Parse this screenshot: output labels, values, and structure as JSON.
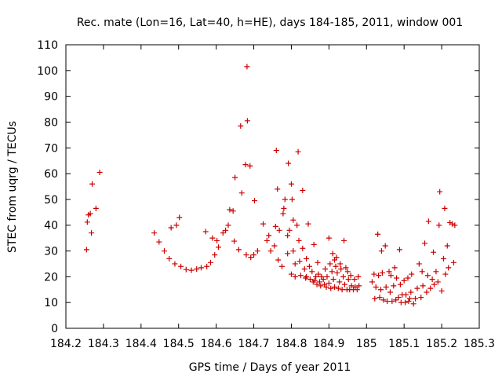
{
  "chart_data": {
    "type": "scatter",
    "title": "Rec. mate (Lon=16, Lat=40, h=HE), days 184-185, 2011, window 001",
    "xlabel": "GPS time / Days of year 2011",
    "ylabel": "STEC from uqrg / TECUs",
    "xlim": [
      184.2,
      185.3
    ],
    "ylim": [
      0,
      110
    ],
    "x_ticks": [
      184.2,
      184.3,
      184.4,
      184.5,
      184.6,
      184.7,
      184.8,
      184.9,
      185.0,
      185.1,
      185.2,
      185.3
    ],
    "x_tick_labels": [
      "184.2",
      "184.3",
      "184.4",
      "184.5",
      "184.6",
      "184.7",
      "184.8",
      "184.9",
      "185",
      "185.1",
      "185.2",
      "185.3"
    ],
    "y_ticks": [
      0,
      10,
      20,
      30,
      40,
      50,
      60,
      70,
      80,
      90,
      100,
      110
    ],
    "y_tick_labels": [
      "0",
      "10",
      "20",
      "30",
      "40",
      "50",
      "60",
      "70",
      "80",
      "90",
      "100",
      "110"
    ],
    "grid": false,
    "marker_color": "#cc0000",
    "points": [
      [
        184.255,
        30.5
      ],
      [
        184.257,
        41.2
      ],
      [
        184.26,
        44
      ],
      [
        184.265,
        44.5
      ],
      [
        184.268,
        37
      ],
      [
        184.27,
        56
      ],
      [
        184.28,
        46.5
      ],
      [
        184.29,
        60.5
      ],
      [
        184.435,
        37
      ],
      [
        184.448,
        33.5
      ],
      [
        184.462,
        30
      ],
      [
        184.475,
        27
      ],
      [
        184.48,
        39
      ],
      [
        184.49,
        25
      ],
      [
        184.494,
        40
      ],
      [
        184.502,
        43
      ],
      [
        184.506,
        24
      ],
      [
        184.52,
        22.8
      ],
      [
        184.534,
        22.5
      ],
      [
        184.548,
        23
      ],
      [
        184.56,
        23.5
      ],
      [
        184.572,
        37.5
      ],
      [
        184.575,
        24
      ],
      [
        184.585,
        25.5
      ],
      [
        184.59,
        35
      ],
      [
        184.596,
        28.5
      ],
      [
        184.602,
        34
      ],
      [
        184.606,
        31.5
      ],
      [
        184.618,
        37
      ],
      [
        184.625,
        38
      ],
      [
        184.632,
        40
      ],
      [
        184.636,
        46
      ],
      [
        184.645,
        45.5
      ],
      [
        184.648,
        33.8
      ],
      [
        184.65,
        58.5
      ],
      [
        184.66,
        30.5
      ],
      [
        184.665,
        78.5
      ],
      [
        184.668,
        52.5
      ],
      [
        184.678,
        63.5
      ],
      [
        184.682,
        101.5
      ],
      [
        184.683,
        80.5
      ],
      [
        184.68,
        28.5
      ],
      [
        184.69,
        63
      ],
      [
        184.692,
        27.5
      ],
      [
        184.7,
        28.5
      ],
      [
        184.702,
        49.5
      ],
      [
        184.71,
        30
      ],
      [
        184.725,
        40.5
      ],
      [
        184.735,
        34
      ],
      [
        184.74,
        36
      ],
      [
        184.745,
        30
      ],
      [
        184.755,
        32
      ],
      [
        184.758,
        39.5
      ],
      [
        184.76,
        69
      ],
      [
        184.763,
        54
      ],
      [
        184.765,
        26.5
      ],
      [
        184.768,
        38
      ],
      [
        184.775,
        24
      ],
      [
        184.778,
        44.5
      ],
      [
        184.78,
        46.5
      ],
      [
        184.783,
        50
      ],
      [
        184.79,
        36
      ],
      [
        184.792,
        64
      ],
      [
        184.795,
        38
      ],
      [
        184.79,
        29
      ],
      [
        184.8,
        56
      ],
      [
        184.8,
        21
      ],
      [
        184.802,
        50
      ],
      [
        184.805,
        42
      ],
      [
        184.805,
        30
      ],
      [
        184.81,
        25
      ],
      [
        184.81,
        20
      ],
      [
        184.815,
        40
      ],
      [
        184.818,
        68.5
      ],
      [
        184.82,
        34
      ],
      [
        184.822,
        26
      ],
      [
        184.825,
        20.5
      ],
      [
        184.83,
        53.5
      ],
      [
        184.83,
        31
      ],
      [
        184.835,
        23
      ],
      [
        184.838,
        19.5
      ],
      [
        184.84,
        27
      ],
      [
        184.84,
        20
      ],
      [
        184.845,
        40.5
      ],
      [
        184.848,
        24
      ],
      [
        184.85,
        19
      ],
      [
        184.855,
        22
      ],
      [
        184.858,
        18
      ],
      [
        184.86,
        32.5
      ],
      [
        184.862,
        18.5
      ],
      [
        184.865,
        20
      ],
      [
        184.868,
        17
      ],
      [
        184.87,
        25.5
      ],
      [
        184.872,
        21
      ],
      [
        184.875,
        18
      ],
      [
        184.878,
        16.5
      ],
      [
        184.88,
        20
      ],
      [
        184.885,
        19
      ],
      [
        184.888,
        17
      ],
      [
        184.89,
        23
      ],
      [
        184.893,
        16
      ],
      [
        184.895,
        20
      ],
      [
        184.9,
        35
      ],
      [
        184.9,
        17.5
      ],
      [
        184.903,
        25
      ],
      [
        184.905,
        15.5
      ],
      [
        184.908,
        22
      ],
      [
        184.91,
        29
      ],
      [
        184.912,
        19
      ],
      [
        184.915,
        26.5
      ],
      [
        184.915,
        16
      ],
      [
        184.918,
        24
      ],
      [
        184.92,
        27.5
      ],
      [
        184.922,
        21.5
      ],
      [
        184.925,
        15.5
      ],
      [
        184.928,
        18
      ],
      [
        184.93,
        25
      ],
      [
        184.932,
        23
      ],
      [
        184.935,
        15
      ],
      [
        184.938,
        20
      ],
      [
        184.94,
        34
      ],
      [
        184.942,
        17
      ],
      [
        184.945,
        23.5
      ],
      [
        184.948,
        15
      ],
      [
        184.95,
        22
      ],
      [
        184.952,
        19
      ],
      [
        184.955,
        15
      ],
      [
        184.958,
        20.5
      ],
      [
        184.96,
        16.5
      ],
      [
        184.965,
        15
      ],
      [
        184.968,
        19
      ],
      [
        184.97,
        16
      ],
      [
        184.975,
        15
      ],
      [
        184.978,
        20
      ],
      [
        184.98,
        16.5
      ],
      [
        185.015,
        18
      ],
      [
        185.02,
        21
      ],
      [
        185.022,
        11.5
      ],
      [
        185.025,
        16
      ],
      [
        185.03,
        36.5
      ],
      [
        185.032,
        20.5
      ],
      [
        185.035,
        12
      ],
      [
        185.038,
        15
      ],
      [
        185.04,
        30
      ],
      [
        185.042,
        21.5
      ],
      [
        185.045,
        11
      ],
      [
        185.05,
        32
      ],
      [
        185.052,
        16
      ],
      [
        185.055,
        10.5
      ],
      [
        185.06,
        22
      ],
      [
        185.063,
        14
      ],
      [
        185.065,
        20.5
      ],
      [
        185.068,
        10.5
      ],
      [
        185.072,
        16.5
      ],
      [
        185.075,
        23.5
      ],
      [
        185.078,
        11
      ],
      [
        185.08,
        19.5
      ],
      [
        185.085,
        12
      ],
      [
        185.088,
        30.5
      ],
      [
        185.09,
        17
      ],
      [
        185.092,
        10
      ],
      [
        185.095,
        13
      ],
      [
        185.1,
        18.5
      ],
      [
        185.103,
        10
      ],
      [
        185.105,
        13
      ],
      [
        185.11,
        19.5
      ],
      [
        185.112,
        10.5
      ],
      [
        185.115,
        11.5
      ],
      [
        185.118,
        14
      ],
      [
        185.12,
        21
      ],
      [
        185.125,
        9.5
      ],
      [
        185.13,
        11.5
      ],
      [
        185.135,
        15.5
      ],
      [
        185.14,
        25
      ],
      [
        185.145,
        12
      ],
      [
        185.148,
        22
      ],
      [
        185.15,
        16.5
      ],
      [
        185.155,
        33
      ],
      [
        185.16,
        14
      ],
      [
        185.163,
        20.5
      ],
      [
        185.165,
        41.5
      ],
      [
        185.17,
        15.5
      ],
      [
        185.175,
        19
      ],
      [
        185.178,
        29.5
      ],
      [
        185.18,
        17
      ],
      [
        185.185,
        22
      ],
      [
        185.19,
        18
      ],
      [
        185.193,
        40
      ],
      [
        185.195,
        53
      ],
      [
        185.2,
        14.5
      ],
      [
        185.205,
        27
      ],
      [
        185.208,
        46.5
      ],
      [
        185.21,
        21
      ],
      [
        185.215,
        32
      ],
      [
        185.218,
        23.5
      ],
      [
        185.222,
        41
      ],
      [
        185.228,
        40.5
      ],
      [
        185.232,
        25.5
      ],
      [
        185.235,
        40
      ]
    ]
  }
}
